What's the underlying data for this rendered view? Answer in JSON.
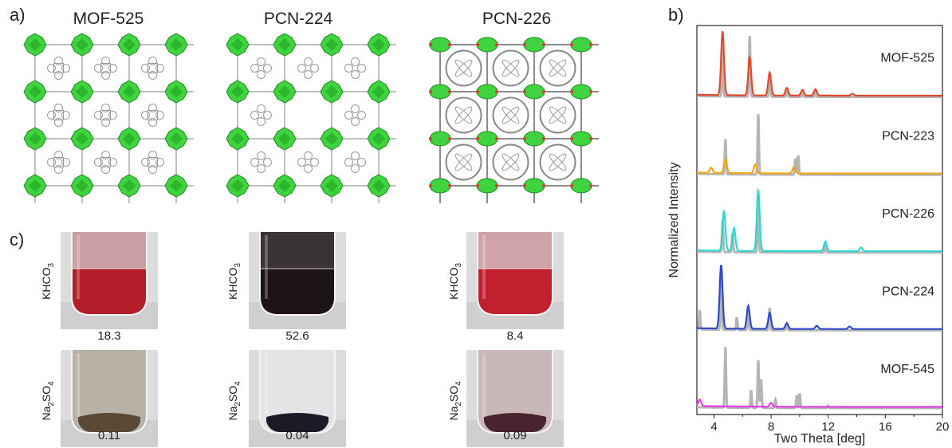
{
  "panels": {
    "a_label": "a)",
    "b_label": "b)",
    "c_label": "c)"
  },
  "structures": [
    {
      "name": "MOF-525",
      "variant": "square"
    },
    {
      "name": "PCN-224",
      "variant": "open"
    },
    {
      "name": "PCN-226",
      "variant": "dense"
    }
  ],
  "vials": {
    "row_labels": [
      "KHCO3",
      "Na2SO4"
    ],
    "row_label_parts": [
      {
        "main": "KHCO",
        "sub": "3"
      },
      {
        "main": "Na",
        "sub": "2",
        "main2": "SO",
        "sub2": "4"
      }
    ],
    "khco3": [
      {
        "value": "18.3",
        "liquid": "#b21f2a",
        "top": "#c8a0a2"
      },
      {
        "value": "52.6",
        "liquid": "#1c1416",
        "top": "#3a3436"
      },
      {
        "value": "8.4",
        "liquid": "#c2202e",
        "top": "#cfa4a6"
      }
    ],
    "na2so4": [
      {
        "value": "0.11",
        "liquid": "#b7b1a6",
        "sediment": "#5a4a35"
      },
      {
        "value": "0.04",
        "liquid": "#e4e4e6",
        "sediment": "#1b1b28"
      },
      {
        "value": "0.09",
        "liquid": "#c9b6b8",
        "sediment": "#4a2330"
      }
    ]
  },
  "chart_data": {
    "type": "line",
    "xlabel": "Two Theta [deg]",
    "ylabel": "Normalized Intensity",
    "xlim": [
      2.8,
      20
    ],
    "xticks": [
      4,
      8,
      12,
      16,
      20
    ],
    "series": [
      {
        "name": "MOF-525",
        "color": "#e24a2c",
        "peaks": [
          [
            4.6,
            1.0
          ],
          [
            6.5,
            0.6
          ],
          [
            7.9,
            0.36
          ],
          [
            9.1,
            0.12
          ],
          [
            10.2,
            0.09
          ],
          [
            11.1,
            0.1
          ],
          [
            13.7,
            0.03
          ]
        ],
        "ref_peaks": [
          [
            4.6,
            0.75
          ],
          [
            6.5,
            0.95
          ],
          [
            7.9,
            0.3
          ],
          [
            9.1,
            0.1
          ],
          [
            10.2,
            0.08
          ],
          [
            11.1,
            0.09
          ]
        ]
      },
      {
        "name": "PCN-223",
        "color": "#f0a81e",
        "peaks": [
          [
            3.8,
            0.08
          ],
          [
            4.8,
            0.22
          ],
          [
            6.9,
            0.14
          ],
          [
            9.6,
            0.1
          ]
        ],
        "ref_peaks": [
          [
            4.8,
            0.55
          ],
          [
            7.1,
            0.95
          ],
          [
            9.7,
            0.25
          ],
          [
            9.9,
            0.3
          ]
        ]
      },
      {
        "name": "PCN-226",
        "color": "#2fd6cf",
        "peaks": [
          [
            4.7,
            0.62
          ],
          [
            5.4,
            0.36
          ],
          [
            7.1,
            0.95
          ],
          [
            11.8,
            0.15
          ],
          [
            14.3,
            0.06
          ]
        ],
        "ref_peaks": [
          [
            4.6,
            0.5
          ],
          [
            5.3,
            0.3
          ],
          [
            7.1,
            0.95
          ],
          [
            11.8,
            0.1
          ]
        ]
      },
      {
        "name": "PCN-224",
        "color": "#2f49c9",
        "peaks": [
          [
            4.5,
            1.0
          ],
          [
            6.4,
            0.36
          ],
          [
            7.9,
            0.25
          ],
          [
            9.1,
            0.09
          ],
          [
            11.2,
            0.05
          ],
          [
            13.5,
            0.04
          ]
        ],
        "ref_peaks": [
          [
            3.0,
            0.3
          ],
          [
            4.5,
            0.85
          ],
          [
            5.6,
            0.2
          ],
          [
            6.4,
            0.35
          ],
          [
            7.9,
            0.35
          ],
          [
            9.1,
            0.1
          ]
        ]
      },
      {
        "name": "MOF-545",
        "color": "#e43ee8",
        "peaks": [
          [
            3.0,
            0.1
          ],
          [
            8.0,
            0.06
          ]
        ],
        "ref_peaks": [
          [
            4.8,
            0.95
          ],
          [
            6.6,
            0.28
          ],
          [
            7.1,
            0.75
          ],
          [
            7.3,
            0.45
          ],
          [
            8.3,
            0.13
          ],
          [
            9.8,
            0.2
          ],
          [
            10.0,
            0.23
          ],
          [
            12.0,
            0.04
          ]
        ]
      }
    ]
  }
}
